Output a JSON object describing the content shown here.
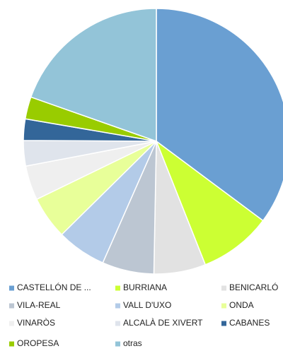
{
  "chart_data": {
    "type": "pie",
    "categories": [
      "CASTELLÓN DE ...",
      "BURRIANA",
      "BENICARLÓ",
      "VILA-REAL",
      "VALL D'UXO",
      "ONDA",
      "VINARÒS",
      "ALCALÀ DE XIVERT",
      "CABANES",
      "OROPESA",
      "otras"
    ],
    "values": [
      35.2,
      8.8,
      6.3,
      6.3,
      6,
      5.2,
      4.2,
      3.1,
      2.6,
      2.7,
      19.6
    ],
    "colors": [
      "#6a9fd2",
      "#ccff33",
      "#e2e2e2",
      "#bcc6d2",
      "#b3cbe8",
      "#e8ff99",
      "#efefef",
      "#dfe4ec",
      "#336699",
      "#99cc00",
      "#93c4d8"
    ],
    "legend": "bottom"
  }
}
